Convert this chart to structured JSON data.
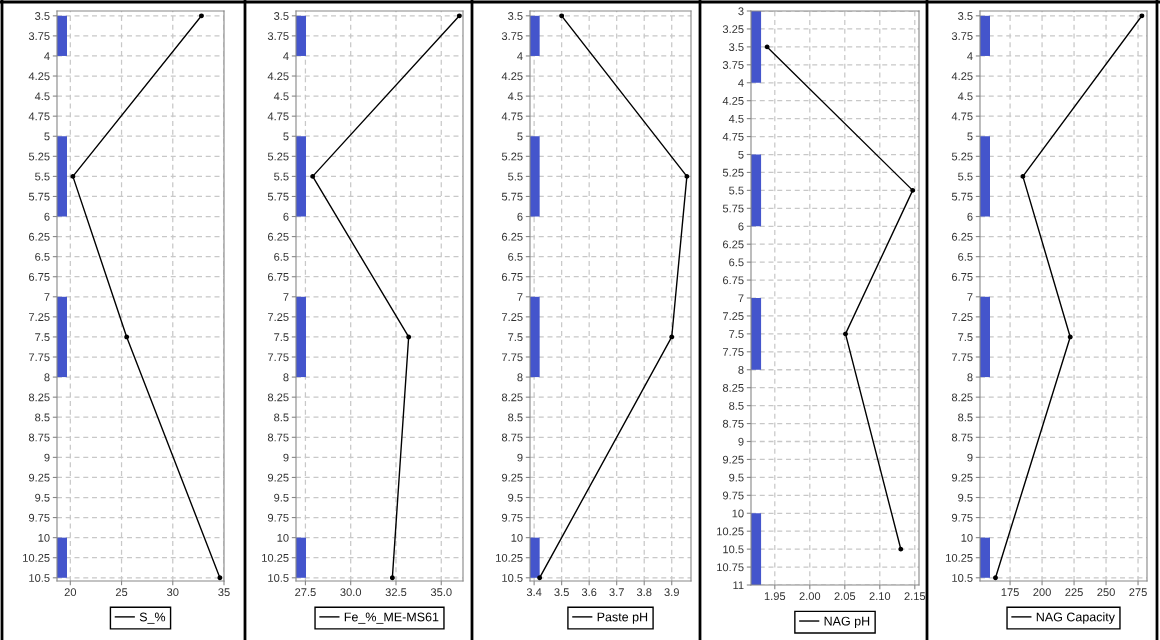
{
  "chart_data": [
    {
      "type": "line",
      "xlim": [
        18.7,
        35.0
      ],
      "xticks": [
        20,
        25,
        30,
        35
      ],
      "ylim": [
        10.54,
        3.44
      ],
      "yticks": [
        3.5,
        3.75,
        4,
        4.25,
        4.5,
        4.75,
        5,
        5.25,
        5.5,
        5.75,
        6,
        6.25,
        6.5,
        6.75,
        7,
        7.25,
        7.5,
        7.75,
        8,
        8.25,
        8.5,
        8.75,
        9,
        9.25,
        9.5,
        9.75,
        10,
        10.25,
        10.5
      ],
      "grid": true,
      "legend": "bottom",
      "marker": "circle",
      "line_style": "solid",
      "series": [
        {
          "name": "S_%",
          "color": "#000000",
          "x": [
            32.8,
            20.25,
            25.5,
            34.6
          ],
          "values": [
            3.5,
            5.5,
            7.5,
            10.5
          ]
        }
      ],
      "bands": [
        {
          "axis": "y",
          "from": 3.5,
          "to": 4,
          "color": "#4455cc"
        },
        {
          "axis": "y",
          "from": 5,
          "to": 6,
          "color": "#4455cc"
        },
        {
          "axis": "y",
          "from": 7,
          "to": 8,
          "color": "#4455cc"
        },
        {
          "axis": "y",
          "from": 10,
          "to": 10.5,
          "color": "#4455cc"
        }
      ]
    },
    {
      "type": "line",
      "xlim": [
        26.98,
        36.2
      ],
      "xticks": [
        27.5,
        {
          "value": 30,
          "label": "30.0"
        },
        32.5,
        {
          "value": 35,
          "label": "35.0"
        }
      ],
      "ylim": [
        10.54,
        3.44
      ],
      "yticks": [
        3.5,
        3.75,
        4,
        4.25,
        4.5,
        4.75,
        5,
        5.25,
        5.5,
        5.75,
        6,
        6.25,
        6.5,
        6.75,
        7,
        7.25,
        7.5,
        7.75,
        8,
        8.25,
        8.5,
        8.75,
        9,
        9.25,
        9.5,
        9.75,
        10,
        10.25,
        10.5
      ],
      "grid": true,
      "legend": "bottom",
      "marker": "circle",
      "line_style": "solid",
      "series": [
        {
          "name": "Fe_%_ME-MS61",
          "color": "#000000",
          "x": [
            36.0,
            27.9,
            33.2,
            32.3
          ],
          "values": [
            3.5,
            5.5,
            7.5,
            10.5
          ]
        }
      ],
      "bands": [
        {
          "axis": "y",
          "from": 3.5,
          "to": 4,
          "color": "#4455cc"
        },
        {
          "axis": "y",
          "from": 5,
          "to": 6,
          "color": "#4455cc"
        },
        {
          "axis": "y",
          "from": 7,
          "to": 8,
          "color": "#4455cc"
        },
        {
          "axis": "y",
          "from": 10,
          "to": 10.5,
          "color": "#4455cc"
        }
      ]
    },
    {
      "type": "line",
      "xlim": [
        3.385,
        3.97
      ],
      "xticks": [
        3.4,
        3.5,
        3.6,
        3.7,
        3.8,
        3.9
      ],
      "ylim": [
        10.54,
        3.44
      ],
      "yticks": [
        3.5,
        3.75,
        4,
        4.25,
        4.5,
        4.75,
        5,
        5.25,
        5.5,
        5.75,
        6,
        6.25,
        6.5,
        6.75,
        7,
        7.25,
        7.5,
        7.75,
        8,
        8.25,
        8.5,
        8.75,
        9,
        9.25,
        9.5,
        9.75,
        10,
        10.25,
        10.5
      ],
      "grid": true,
      "legend": "bottom",
      "marker": "circle",
      "line_style": "solid",
      "series": [
        {
          "name": "Paste pH",
          "color": "#000000",
          "x": [
            3.5,
            3.955,
            3.9,
            3.42
          ],
          "values": [
            3.5,
            5.5,
            7.5,
            10.5
          ]
        }
      ],
      "bands": [
        {
          "axis": "y",
          "from": 3.5,
          "to": 4,
          "color": "#4455cc"
        },
        {
          "axis": "y",
          "from": 5,
          "to": 6,
          "color": "#4455cc"
        },
        {
          "axis": "y",
          "from": 7,
          "to": 8,
          "color": "#4455cc"
        },
        {
          "axis": "y",
          "from": 10,
          "to": 10.5,
          "color": "#4455cc"
        }
      ]
    },
    {
      "type": "line",
      "xlim": [
        1.916,
        2.156
      ],
      "xticks": [
        1.95,
        {
          "value": 2.0,
          "label": "2.00"
        },
        2.05,
        {
          "value": 2.1,
          "label": "2.10"
        },
        2.15
      ],
      "ylim": [
        11,
        3
      ],
      "yticks": [
        3,
        3.25,
        3.5,
        3.75,
        4,
        4.25,
        4.5,
        4.75,
        5,
        5.25,
        5.5,
        5.75,
        6,
        6.25,
        6.5,
        6.75,
        7,
        7.25,
        7.5,
        7.75,
        8,
        8.25,
        8.5,
        8.75,
        9,
        9.25,
        9.5,
        9.75,
        10,
        10.25,
        10.5,
        10.75,
        11
      ],
      "grid": true,
      "legend": "bottom",
      "marker": "circle",
      "line_style": "solid",
      "series": [
        {
          "name": "NAG pH",
          "color": "#000000",
          "x": [
            1.939,
            2.147,
            2.051,
            2.13
          ],
          "values": [
            3.5,
            5.5,
            7.5,
            10.5
          ]
        }
      ],
      "bands": [
        {
          "axis": "y",
          "from": 3,
          "to": 4,
          "color": "#4455cc"
        },
        {
          "axis": "y",
          "from": 5,
          "to": 6,
          "color": "#4455cc"
        },
        {
          "axis": "y",
          "from": 7,
          "to": 8,
          "color": "#4455cc"
        },
        {
          "axis": "y",
          "from": 10,
          "to": 11,
          "color": "#4455cc"
        }
      ]
    },
    {
      "type": "line",
      "xlim": [
        151.5,
        282
      ],
      "xticks": [
        175,
        200,
        225,
        250,
        275
      ],
      "ylim": [
        10.54,
        3.44
      ],
      "yticks": [
        3.5,
        3.75,
        4,
        4.25,
        4.5,
        4.75,
        5,
        5.25,
        5.5,
        5.75,
        6,
        6.25,
        6.5,
        6.75,
        7,
        7.25,
        7.5,
        7.75,
        8,
        8.25,
        8.5,
        8.75,
        9,
        9.25,
        9.5,
        9.75,
        10,
        10.25,
        10.5
      ],
      "grid": true,
      "legend": "bottom",
      "marker": "circle",
      "line_style": "solid",
      "series": [
        {
          "name": "NAG Capacity",
          "color": "#000000",
          "x": [
            278,
            185,
            222,
            163.6
          ],
          "values": [
            3.5,
            5.5,
            7.5,
            10.5
          ]
        }
      ],
      "bands": [
        {
          "axis": "y",
          "from": 3.5,
          "to": 4,
          "color": "#4455cc"
        },
        {
          "axis": "y",
          "from": 5,
          "to": 6,
          "color": "#4455cc"
        },
        {
          "axis": "y",
          "from": 7,
          "to": 8,
          "color": "#4455cc"
        },
        {
          "axis": "y",
          "from": 10,
          "to": 10.5,
          "color": "#4455cc"
        }
      ]
    }
  ]
}
